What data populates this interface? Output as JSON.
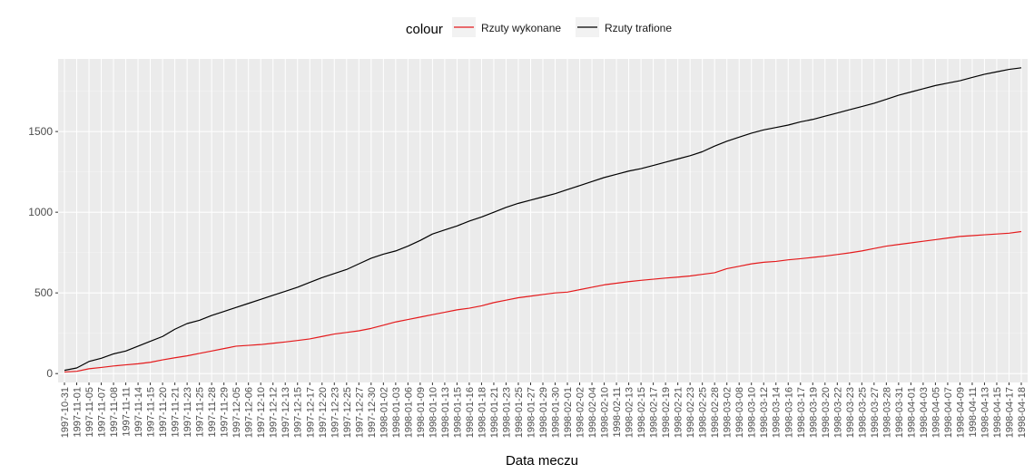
{
  "chart_data": {
    "type": "line",
    "xlabel": "Data meczu",
    "ylabel": "",
    "legend": {
      "title": "colour",
      "position": "top",
      "entries": [
        {
          "name": "Rzuty wykonane",
          "color": "#e41a1c"
        },
        {
          "name": "Rzuty trafione",
          "color": "#000000"
        }
      ]
    },
    "ylim": [
      -55,
      1950
    ],
    "yticks": [
      0,
      500,
      1000,
      1500
    ],
    "ytick_labels": [
      "0",
      "500",
      "1000",
      "1500"
    ],
    "grid": true,
    "panel_background": "#ebebeb",
    "x": [
      "1997-10-31",
      "1997-11-01",
      "1997-11-05",
      "1997-11-07",
      "1997-11-08",
      "1997-11-11",
      "1997-11-14",
      "1997-11-15",
      "1997-11-20",
      "1997-11-21",
      "1997-11-23",
      "1997-11-25",
      "1997-11-28",
      "1997-11-29",
      "1997-12-05",
      "1997-12-06",
      "1997-12-10",
      "1997-12-12",
      "1997-12-13",
      "1997-12-15",
      "1997-12-17",
      "1997-12-20",
      "1997-12-23",
      "1997-12-25",
      "1997-12-27",
      "1997-12-30",
      "1998-01-02",
      "1998-01-03",
      "1998-01-06",
      "1998-01-09",
      "1998-01-10",
      "1998-01-13",
      "1998-01-15",
      "1998-01-16",
      "1998-01-18",
      "1998-01-21",
      "1998-01-23",
      "1998-01-25",
      "1998-01-27",
      "1998-01-29",
      "1998-01-30",
      "1998-02-01",
      "1998-02-02",
      "1998-02-04",
      "1998-02-10",
      "1998-02-11",
      "1998-02-13",
      "1998-02-15",
      "1998-02-17",
      "1998-02-19",
      "1998-02-21",
      "1998-02-23",
      "1998-02-25",
      "1998-02-28",
      "1998-03-02",
      "1998-03-08",
      "1998-03-10",
      "1998-03-12",
      "1998-03-14",
      "1998-03-16",
      "1998-03-17",
      "1998-03-19",
      "1998-03-20",
      "1998-03-22",
      "1998-03-23",
      "1998-03-25",
      "1998-03-27",
      "1998-03-28",
      "1998-03-31",
      "1998-04-01",
      "1998-04-03",
      "1998-04-05",
      "1998-04-07",
      "1998-04-09",
      "1998-04-11",
      "1998-04-13",
      "1998-04-15",
      "1998-04-17",
      "1998-04-18"
    ],
    "x_tick_labels_shown": [
      "1997-10-31",
      "1997-11-01",
      "1997-11-05",
      "1997-11-07",
      "1997-11-08",
      "1997-11-11",
      "1997-11-14",
      "1997-11-15",
      "1997-11-20",
      "1997-11-21",
      "1997-11-23",
      "1997-11-25",
      "1997-11-28",
      "1997-11-29",
      "1997-12-05",
      "1997-12-06",
      "1997-12-10",
      "1997-12-12",
      "1997-12-13",
      "1997-12-15",
      "1997-12-17",
      "1997-12-20",
      "1997-12-23",
      "1997-12-25",
      "1997-12-27",
      "1997-12-30",
      "1998-01-02",
      "1998-01-03",
      "1998-01-06",
      "1998-01-09",
      "1998-01-10",
      "1998-01-13",
      "1998-01-15",
      "1998-01-16",
      "1998-01-18",
      "1998-01-21",
      "1998-01-23",
      "1998-01-25",
      "1998-01-27",
      "1998-01-29",
      "1998-01-30",
      "1998-02-01",
      "1998-02-02",
      "1998-02-04",
      "1998-02-10",
      "1998-02-11",
      "1998-02-13",
      "1998-02-15",
      "1998-02-17",
      "1998-02-19",
      "1998-02-21",
      "1998-02-23",
      "1998-02-25",
      "1998-02-28",
      "1998-03-02",
      "1998-03-08",
      "1998-03-10",
      "1998-03-12",
      "1998-03-14",
      "1998-03-16",
      "1998-03-17",
      "1998-03-19",
      "1998-03-20",
      "1998-03-22",
      "1998-03-23",
      "1998-03-25",
      "1998-03-27",
      "1998-03-28",
      "1998-03-31",
      "1998-04-01",
      "1998-04-03",
      "1998-04-05",
      "1998-04-07",
      "1998-04-09",
      "1998-04-11",
      "1998-04-13",
      "1998-04-15",
      "1998-04-17",
      "1998-04-18"
    ],
    "series": [
      {
        "name": "Rzuty wykonane",
        "color": "#e41a1c",
        "values": [
          10,
          14,
          30,
          38,
          47,
          54,
          61,
          70,
          85,
          98,
          110,
          125,
          140,
          155,
          170,
          175,
          180,
          188,
          196,
          205,
          215,
          230,
          245,
          255,
          265,
          280,
          300,
          320,
          335,
          350,
          365,
          380,
          395,
          405,
          420,
          440,
          455,
          470,
          480,
          490,
          500,
          505,
          520,
          535,
          550,
          560,
          570,
          578,
          585,
          592,
          598,
          605,
          615,
          625,
          650,
          665,
          680,
          690,
          695,
          705,
          712,
          720,
          728,
          738,
          748,
          760,
          775,
          790,
          800,
          810,
          820,
          830,
          840,
          850,
          855,
          860,
          865,
          870,
          880
        ]
      },
      {
        "name": "Rzuty trafione",
        "color": "#000000",
        "values": [
          20,
          35,
          75,
          95,
          122,
          140,
          170,
          200,
          230,
          275,
          310,
          330,
          360,
          385,
          410,
          435,
          460,
          485,
          510,
          535,
          565,
          595,
          620,
          645,
          680,
          715,
          740,
          760,
          790,
          825,
          865,
          890,
          915,
          945,
          970,
          1000,
          1030,
          1055,
          1075,
          1095,
          1115,
          1140,
          1165,
          1190,
          1215,
          1235,
          1255,
          1270,
          1290,
          1310,
          1330,
          1350,
          1375,
          1410,
          1440,
          1465,
          1490,
          1510,
          1525,
          1540,
          1560,
          1575,
          1595,
          1615,
          1635,
          1655,
          1675,
          1700,
          1725,
          1745,
          1765,
          1785,
          1800,
          1815,
          1835,
          1855,
          1870,
          1885,
          1895
        ]
      }
    ]
  }
}
